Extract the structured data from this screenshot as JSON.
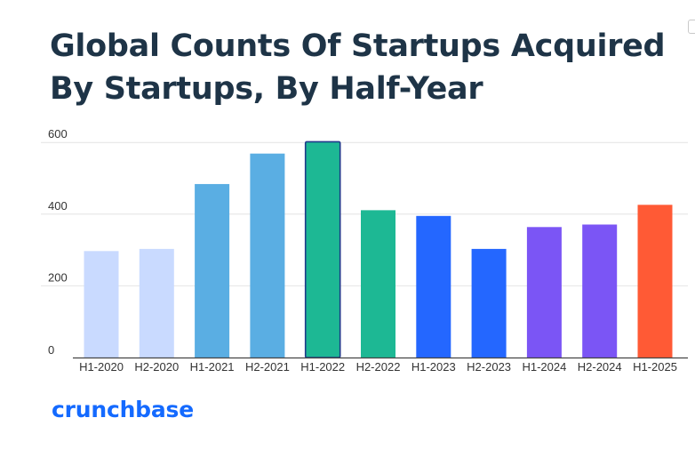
{
  "chart_data": {
    "type": "bar",
    "title": "Global Counts Of Startups Acquired By Startups, By Half-Year",
    "categories": [
      "H1-2020",
      "H2-2020",
      "H1-2021",
      "H2-2021",
      "H1-2022",
      "H2-2022",
      "H1-2023",
      "H2-2023",
      "H1-2024",
      "H2-2024",
      "H1-2025"
    ],
    "values": [
      297,
      303,
      484,
      569,
      602,
      411,
      395,
      303,
      364,
      371,
      426
    ],
    "bar_colors": [
      "#c9daff",
      "#c9daff",
      "#5aaee3",
      "#5aaee3",
      "#1db894",
      "#1db894",
      "#2467ff",
      "#2467ff",
      "#7b55f5",
      "#7b55f5",
      "#ff5a35"
    ],
    "highlighted_category": "H1-2022",
    "highlight_outline_color": "#1e3a8a",
    "y_ticks": [
      0,
      200,
      400,
      600
    ],
    "ylim": [
      0,
      600
    ],
    "xlabel": "",
    "ylabel": "",
    "grid": true,
    "legend": false
  },
  "branding": {
    "logo_text": "crunchbase",
    "logo_color": "#146aff"
  }
}
